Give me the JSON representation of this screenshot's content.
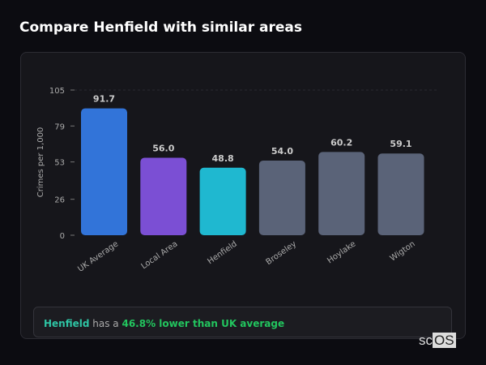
{
  "title": "Compare Henfield with similar areas",
  "chart_data": {
    "type": "bar",
    "categories": [
      "UK Average",
      "Local Area",
      "Henfield",
      "Broseley",
      "Hoylake",
      "Wigton"
    ],
    "values": [
      91.7,
      56.0,
      48.8,
      54.0,
      60.2,
      59.1
    ],
    "labels": [
      "91.7",
      "56.0",
      "48.8",
      "54.0",
      "60.2",
      "59.1"
    ],
    "colors": [
      "#3274d9",
      "#7b4fd4",
      "#1fb8d0",
      "#5a6378",
      "#5a6378",
      "#5a6378"
    ],
    "ylabel": "Crimes per 1,000",
    "yticks": [
      0,
      26,
      53,
      79,
      105
    ],
    "ylim": [
      0,
      105
    ],
    "grid": false
  },
  "note": {
    "area": "Henfield",
    "mid": " has a ",
    "highlight": "46.8% lower than UK average"
  },
  "logo": {
    "a": "sc",
    "b": "OS"
  }
}
